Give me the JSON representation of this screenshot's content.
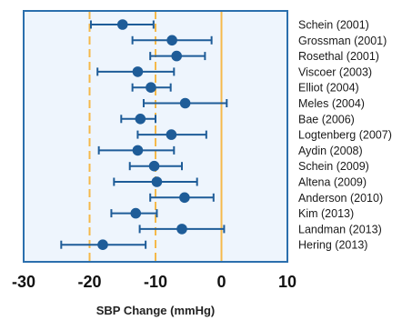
{
  "chart_data": {
    "type": "forest",
    "xlabel": "SBP Change (mmHg)",
    "xlim": [
      -30,
      10
    ],
    "xticks": [
      -30,
      -20,
      -10,
      0,
      10
    ],
    "reference_lines": [
      {
        "x": -20,
        "style": "dashed",
        "color": "#f5b94a"
      },
      {
        "x": -10,
        "style": "dashed",
        "color": "#f5b94a"
      },
      {
        "x": 0,
        "style": "solid",
        "color": "#f5b94a"
      }
    ],
    "studies": [
      {
        "label": "Schein (2001)",
        "estimate": -15.0,
        "lower": -19.8,
        "upper": -10.3
      },
      {
        "label": "Grossman (2001)",
        "estimate": -7.5,
        "lower": -13.5,
        "upper": -1.5
      },
      {
        "label": "Rosethal (2001)",
        "estimate": -6.8,
        "lower": -10.8,
        "upper": -2.5
      },
      {
        "label": "Viscoer (2003)",
        "estimate": -12.7,
        "lower": -18.8,
        "upper": -7.2
      },
      {
        "label": "Elliot (2004)",
        "estimate": -10.7,
        "lower": -13.5,
        "upper": -7.7
      },
      {
        "label": "Meles (2004)",
        "estimate": -5.5,
        "lower": -11.8,
        "upper": 0.8
      },
      {
        "label": "Bae (2006)",
        "estimate": -12.3,
        "lower": -15.2,
        "upper": -10.0
      },
      {
        "label": "Logtenberg (2007)",
        "estimate": -7.6,
        "lower": -12.7,
        "upper": -2.3
      },
      {
        "label": "Aydin (2008)",
        "estimate": -12.7,
        "lower": -18.6,
        "upper": -7.2
      },
      {
        "label": "Schein (2009)",
        "estimate": -10.2,
        "lower": -13.9,
        "upper": -6.0
      },
      {
        "label": "Altena (2009)",
        "estimate": -9.8,
        "lower": -16.3,
        "upper": -3.7
      },
      {
        "label": "Anderson (2010)",
        "estimate": -5.6,
        "lower": -10.8,
        "upper": -1.2
      },
      {
        "label": "Kim (2013)",
        "estimate": -13.0,
        "lower": -16.7,
        "upper": -9.8
      },
      {
        "label": "Landman (2013)",
        "estimate": -6.0,
        "lower": -12.4,
        "upper": 0.4
      },
      {
        "label": "Hering (2013)",
        "estimate": -18.0,
        "lower": -24.3,
        "upper": -11.5
      }
    ]
  },
  "colors": {
    "plot_background": "#eef5fd",
    "frame": "#2b6fad",
    "marker": "#1e5c98",
    "reference": "#f5b94a"
  }
}
